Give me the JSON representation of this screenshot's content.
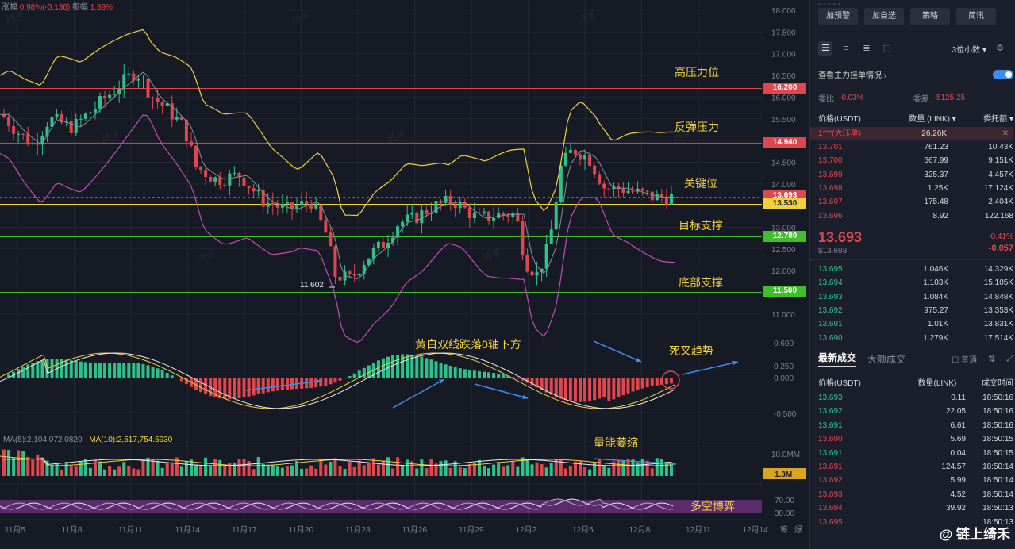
{
  "header": {
    "change_label": "涨幅",
    "change_value": "0.98%(-0.136)",
    "amp_label": "振幅",
    "amp_value": "1.89%"
  },
  "price_axis": [
    "18.000",
    "17.500",
    "17.000",
    "16.500",
    "16.000",
    "15.500",
    "15.000",
    "14.500",
    "14.000",
    "13.500",
    "13.000",
    "12.500",
    "12.000",
    "11.500",
    "11.000"
  ],
  "macd_axis": [
    "0.690",
    "0.250",
    "0.000",
    "-0.500"
  ],
  "vol_axis": [
    "10.0MM",
    "1.3M"
  ],
  "osc_axis": [
    "70.00",
    "30.00"
  ],
  "price_tags": {
    "high": "16.200",
    "rebound": "14.940",
    "cur": "13.693",
    "key": "13.530",
    "target": "12.780",
    "bottom": "11.500"
  },
  "colors": {
    "red": "#e0474c",
    "yellow": "#f2d23c",
    "green": "#3fbf2a"
  },
  "annotations": {
    "high": "高压力位",
    "rebound": "反弹压力",
    "key": "关键位",
    "target": "目标支撑",
    "bottom": "底部支撑",
    "macd": "黄白双线跌落0轴下方",
    "cross": "死叉趋势",
    "vol": "量能萎缩",
    "osc": "多空博弈",
    "low_price": "11.602"
  },
  "ma_label": {
    "ma5": "MA(5):2,104,072.0820",
    "ma10": "MA(10):2,517,754.5930"
  },
  "date_axis": [
    "11月5",
    "11月8",
    "11月11",
    "11月14",
    "11月17",
    "11月20",
    "11月23",
    "11月26",
    "11月29",
    "12月2",
    "12月5",
    "12月8",
    "12月11",
    "12月14"
  ],
  "date_extra": [
    "筹",
    "爆"
  ],
  "side": {
    "buttons": [
      "加预警",
      "加自选",
      "策略",
      "简讯"
    ],
    "decimals": "3位小数",
    "main_force": "查看主力挂单情况",
    "wb_label": "委比",
    "wb_value": "-0.03%",
    "wc_label": "委差",
    "wc_value": "-5125.25",
    "col_price": "价格(USDT)",
    "col_qty": "数量 (LINK)",
    "col_total": "委托额",
    "big_order": {
      "price": "1***(大压单)",
      "qty": "26.26K"
    },
    "asks": [
      {
        "p": "13.701",
        "q": "761.23",
        "t": "10.43K"
      },
      {
        "p": "13.700",
        "q": "667.99",
        "t": "9.151K"
      },
      {
        "p": "13.699",
        "q": "325.37",
        "t": "4.457K"
      },
      {
        "p": "13.698",
        "q": "1.25K",
        "t": "17.124K"
      },
      {
        "p": "13.697",
        "q": "175.48",
        "t": "2.404K"
      },
      {
        "p": "13.696",
        "q": "8.92",
        "t": "122.168"
      }
    ],
    "last_price": "13.693",
    "last_usd": "$13.693",
    "last_pct": "-0.41%",
    "last_chg": "-0.057",
    "bids": [
      {
        "p": "13.695",
        "q": "1.046K",
        "t": "14.329K"
      },
      {
        "p": "13.694",
        "q": "1.103K",
        "t": "15.105K"
      },
      {
        "p": "13.693",
        "q": "1.084K",
        "t": "14.848K"
      },
      {
        "p": "13.692",
        "q": "975.27",
        "t": "13.353K"
      },
      {
        "p": "13.691",
        "q": "1.01K",
        "t": "13.831K"
      },
      {
        "p": "13.690",
        "q": "1.279K",
        "t": "17.514K"
      }
    ],
    "tab_latest": "最新成交",
    "tab_large": "大额成交",
    "normal": "普通",
    "trade_cols": [
      "价格(USDT)",
      "数量(LINK)",
      "成交时间"
    ],
    "trades": [
      {
        "p": "13.693",
        "q": "0.11",
        "t": "18:50:16",
        "s": "g"
      },
      {
        "p": "13.692",
        "q": "22.05",
        "t": "18:50:16",
        "s": "g"
      },
      {
        "p": "13.691",
        "q": "6.61",
        "t": "18:50:16",
        "s": "g"
      },
      {
        "p": "13.690",
        "q": "5.69",
        "t": "18:50:15",
        "s": "r"
      },
      {
        "p": "13.691",
        "q": "0.04",
        "t": "18:50:15",
        "s": "g"
      },
      {
        "p": "13.691",
        "q": "124.57",
        "t": "18:50:14",
        "s": "r"
      },
      {
        "p": "13.692",
        "q": "5.99",
        "t": "18:50:14",
        "s": "r"
      },
      {
        "p": "13.693",
        "q": "4.52",
        "t": "18:50:14",
        "s": "r"
      },
      {
        "p": "13.694",
        "q": "39.92",
        "t": "18:50:13",
        "s": "r"
      },
      {
        "p": "13.695",
        "q": "",
        "t": "18:50:13",
        "s": "r"
      }
    ],
    "watermark": "@ 链上绮禾"
  }
}
